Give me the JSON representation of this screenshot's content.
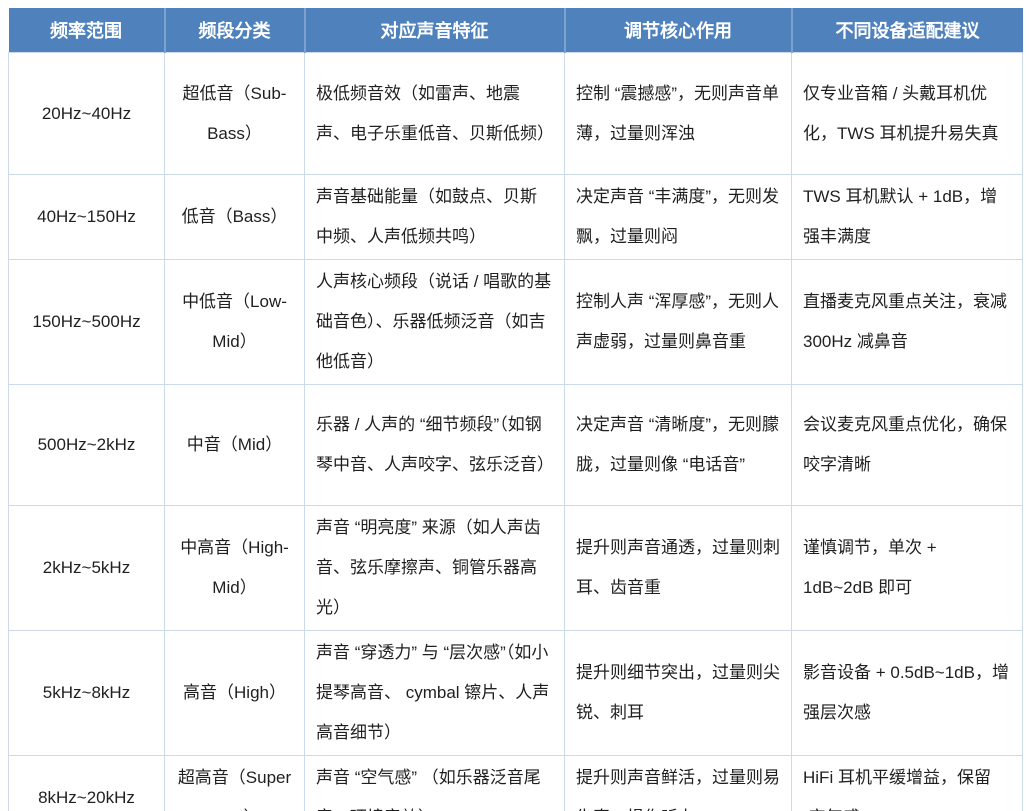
{
  "table": {
    "columns": [
      "频率范围",
      "频段分类",
      "对应声音特征",
      "调节核心作用",
      "不同设备适配建议"
    ],
    "rows": [
      {
        "freq": "20Hz~40Hz",
        "band": "超低音（Sub-Bass）",
        "feature": "极低频音效（如雷声、地震声、电子乐重低音、贝斯低频）",
        "effect": "控制 “震撼感”，无则声音单薄，过量则浑浊",
        "advice": "仅专业音箱 / 头戴耳机优化，TWS 耳机提升易失真"
      },
      {
        "freq": "40Hz~150Hz",
        "band": "低音（Bass）",
        "feature": "声音基础能量（如鼓点、贝斯中频、人声低频共鸣）",
        "effect": "决定声音 “丰满度”，无则发飘，过量则闷",
        "advice": "TWS 耳机默认 + 1dB，增强丰满度"
      },
      {
        "freq": "150Hz~500Hz",
        "band": "中低音（Low-Mid）",
        "feature": "人声核心频段（说话 / 唱歌的基础音色）、乐器低频泛音（如吉他低音）",
        "effect": "控制人声 “浑厚感”，无则人声虚弱，过量则鼻音重",
        "advice": "直播麦克风重点关注，衰减 300Hz 减鼻音"
      },
      {
        "freq": "500Hz~2kHz",
        "band": "中音（Mid）",
        "feature": "乐器 / 人声的 “细节频段”（如钢琴中音、人声咬字、弦乐泛音）",
        "effect": "决定声音 “清晰度”，无则朦胧，过量则像 “电话音”",
        "advice": "会议麦克风重点优化，确保咬字清晰"
      },
      {
        "freq": "2kHz~5kHz",
        "band": "中高音（High-Mid）",
        "feature": "声音 “明亮度” 来源（如人声齿音、弦乐摩擦声、铜管乐器高光）",
        "effect": "提升则声音通透，过量则刺耳、齿音重",
        "advice": "谨慎调节，单次 + 1dB~2dB 即可"
      },
      {
        "freq": "5kHz~8kHz",
        "band": "高音（High）",
        "feature": "声音 “穿透力” 与 “层次感”（如小提琴高音、 cymbal 镲片、人声高音细节）",
        "effect": "提升则细节突出，过量则尖锐、刺耳",
        "advice": "影音设备 + 0.5dB~1dB，增强层次感"
      },
      {
        "freq": "8kHz~20kHz",
        "band": "超高音（Super High）",
        "feature": "声音 “空气感” （如乐器泛音尾音、环境音效）",
        "effect": "提升则声音鲜活，过量则易失真、损伤听力",
        "advice": "HiFi 耳机平缓增益，保留 “空气感”"
      }
    ]
  },
  "colors": {
    "header_bg": "#4F81BD",
    "header_text": "#FFFFFF",
    "header_divider": "#7EA2CE",
    "cell_border": "#CBD9EB",
    "bottom_border": "#4F81BD",
    "body_text": "#1F1F1F"
  }
}
